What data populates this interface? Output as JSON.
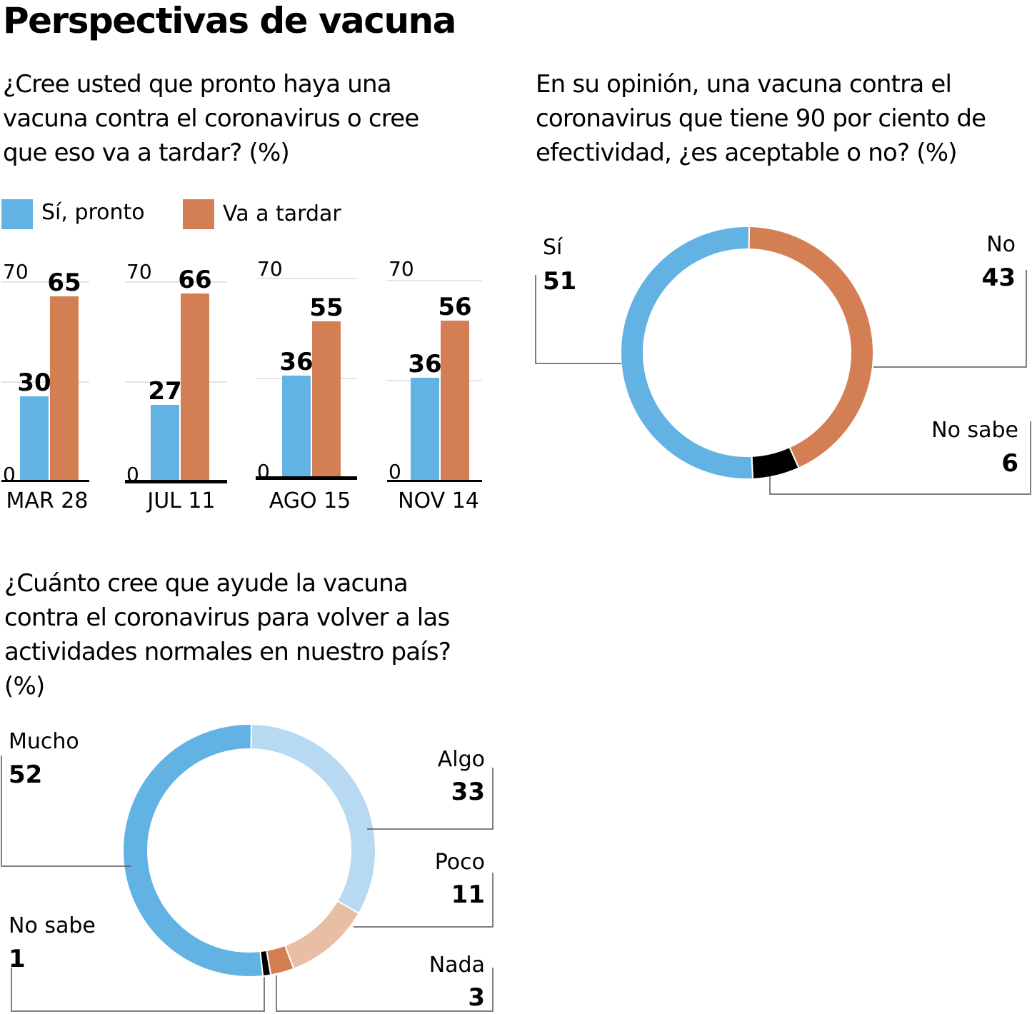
{
  "title": "Perspectivas de vacuna",
  "colors": {
    "blue": "#62b3e4",
    "orange": "#d47f53",
    "light_blue": "#b7d9f2",
    "light_orange": "#e8bfa5",
    "black": "#000000",
    "grid": "#c8c8c8",
    "leader": "#555555"
  },
  "q1": {
    "lines": [
      "¿Cree usted que pronto haya una",
      "vacuna contra el coronavirus o cree",
      "que eso va a tardar?  (%)"
    ],
    "legend": [
      {
        "label": "Sí, pronto",
        "color": "#62b3e4"
      },
      {
        "label": "Va a tardar",
        "color": "#d47f53"
      }
    ]
  },
  "q2": {
    "lines": [
      "En su opinión, una vacuna contra el",
      "coronavirus que tiene 90 por ciento de",
      "efectividad, ¿es aceptable o no?  (%)"
    ]
  },
  "q3": {
    "lines": [
      "¿Cuánto cree que ayude la vacuna",
      "contra el coronavirus para volver a las",
      "actividades normales en nuestro país?",
      "(%)"
    ]
  },
  "chart_data": [
    {
      "type": "bar",
      "categories": [
        "MAR 28",
        "JUL 11",
        "AGO 15",
        "NOV 14"
      ],
      "series": [
        {
          "name": "Sí, pronto",
          "values": [
            30,
            27,
            36,
            36
          ]
        },
        {
          "name": "Va a tardar",
          "values": [
            65,
            66,
            55,
            56
          ]
        }
      ],
      "ylim": [
        0,
        70
      ],
      "yticks": [
        "0",
        "70"
      ],
      "grid": true,
      "legend": "top-left",
      "data_labels": true
    },
    {
      "type": "pie",
      "style": "donut",
      "slices": [
        {
          "label": "Sí",
          "value": 51,
          "color": "#62b3e4"
        },
        {
          "label": "No",
          "value": 43,
          "color": "#d47f53"
        },
        {
          "label": "No sabe",
          "value": 6,
          "color": "#000000"
        }
      ]
    },
    {
      "type": "pie",
      "style": "donut",
      "slices": [
        {
          "label": "Algo",
          "value": 33,
          "color": "#b7d9f2"
        },
        {
          "label": "Poco",
          "value": 11,
          "color": "#e8bfa5"
        },
        {
          "label": "Nada",
          "value": 3,
          "color": "#d47f53"
        },
        {
          "label": "No sabe",
          "value": 1,
          "color": "#000000"
        },
        {
          "label": "Mucho",
          "value": 52,
          "color": "#62b3e4"
        }
      ]
    }
  ]
}
